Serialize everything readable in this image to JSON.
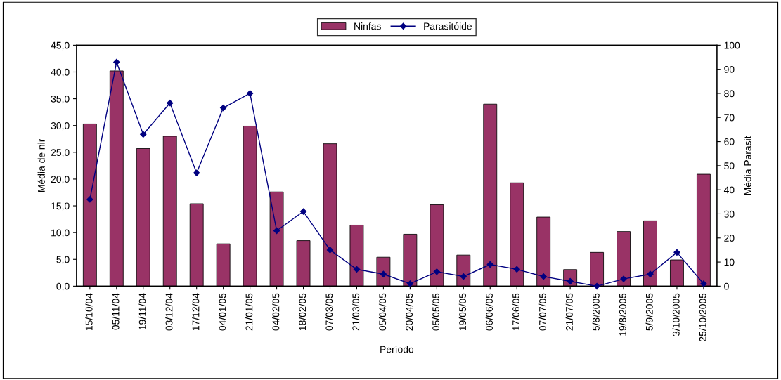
{
  "chart_data": {
    "type": "bar",
    "xlabel": "Período",
    "ylabel": "Média de nir",
    "y2label": "Média Parasit",
    "categories": [
      "15/10/04",
      "05/11/04",
      "19/11/04",
      "03/12/04",
      "17/12/04",
      "04/01/05",
      "21/01/05",
      "04/02/05",
      "18/02/05",
      "07/03/05",
      "21/03/05",
      "05/04/05",
      "20/04/05",
      "05/05/05",
      "19/05/05",
      "06/06/05",
      "17/06/05",
      "07/07/05",
      "21/07/05",
      "5/8/2005",
      "19/8/2005",
      "5/9/2005",
      "3/10/2005",
      "25/10/2005"
    ],
    "series": [
      {
        "name": "Ninfas",
        "color": "#993366",
        "values": [
          30.3,
          40.2,
          25.7,
          28.0,
          15.4,
          7.9,
          29.9,
          17.6,
          8.5,
          26.6,
          11.4,
          5.4,
          9.7,
          15.2,
          5.8,
          34.0,
          19.3,
          12.9,
          3.1,
          6.3,
          10.2,
          12.2,
          4.9,
          20.9
        ]
      },
      {
        "name": "Parasitóide",
        "type": "line",
        "axis": "y2",
        "color": "#000080",
        "marker": "diamond",
        "values": [
          36,
          93,
          63,
          76,
          47,
          74,
          80,
          23,
          31,
          15,
          7,
          5,
          1,
          6,
          4,
          9,
          7,
          4,
          2,
          0,
          3,
          5,
          14,
          1
        ]
      }
    ],
    "ylim": [
      0,
      45
    ],
    "yticks": [
      {
        "value": 0,
        "label": "0,0"
      },
      {
        "value": 5,
        "label": "5,0"
      },
      {
        "value": 10,
        "label": "10,0"
      },
      {
        "value": 15,
        "label": "15,0"
      },
      {
        "value": 20,
        "label": "20,0"
      },
      {
        "value": 25,
        "label": "25,0"
      },
      {
        "value": 30,
        "label": "30,0"
      },
      {
        "value": 35,
        "label": "35,0"
      },
      {
        "value": 40,
        "label": "40,0"
      },
      {
        "value": 45,
        "label": "45,0"
      }
    ],
    "y2lim": [
      0,
      100
    ],
    "y2ticks": [
      0,
      10,
      20,
      30,
      40,
      50,
      60,
      70,
      80,
      90,
      100
    ],
    "legend": "top",
    "grid": false
  }
}
